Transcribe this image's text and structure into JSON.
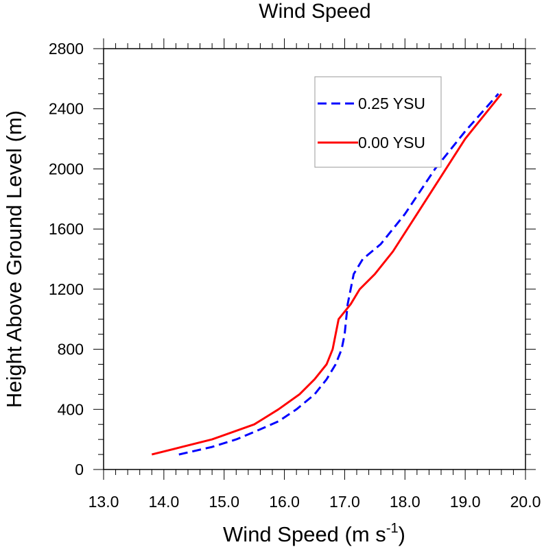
{
  "chart_data": {
    "type": "line",
    "title": "Wind Speed",
    "xlabel": "Wind Speed (m s",
    "xlabel_superscript": "-1",
    "xlabel_suffix": ")",
    "ylabel": "Height Above Ground Level (m)",
    "xlim": [
      13.0,
      20.0
    ],
    "ylim": [
      0,
      2800
    ],
    "x_ticks": [
      "13.0",
      "14.0",
      "15.0",
      "16.0",
      "17.0",
      "18.0",
      "19.0",
      "20.0"
    ],
    "y_ticks": [
      "0",
      "400",
      "800",
      "1200",
      "1600",
      "2000",
      "2400",
      "2800"
    ],
    "grid": false,
    "legend_position": "top-right",
    "series": [
      {
        "name": "0.25 YSU",
        "color": "#0000ff",
        "style": "dashed",
        "x": [
          14.25,
          14.8,
          15.2,
          15.5,
          15.9,
          16.2,
          16.5,
          16.7,
          16.85,
          16.95,
          17.0,
          17.05,
          17.15,
          17.3,
          17.6,
          18.0,
          18.5,
          19.0,
          19.55
        ],
        "y": [
          100,
          150,
          200,
          250,
          320,
          400,
          500,
          600,
          700,
          800,
          900,
          1100,
          1300,
          1400,
          1500,
          1700,
          2000,
          2250,
          2500
        ]
      },
      {
        "name": "0.00 YSU",
        "color": "#ff0000",
        "style": "solid",
        "x": [
          13.8,
          14.3,
          14.8,
          15.5,
          15.9,
          16.25,
          16.5,
          16.7,
          16.8,
          16.9,
          17.1,
          17.25,
          17.5,
          17.8,
          18.2,
          18.6,
          19.0,
          19.6
        ],
        "y": [
          100,
          150,
          200,
          300,
          400,
          500,
          600,
          700,
          800,
          1000,
          1100,
          1200,
          1300,
          1450,
          1700,
          1950,
          2200,
          2500
        ]
      }
    ]
  }
}
